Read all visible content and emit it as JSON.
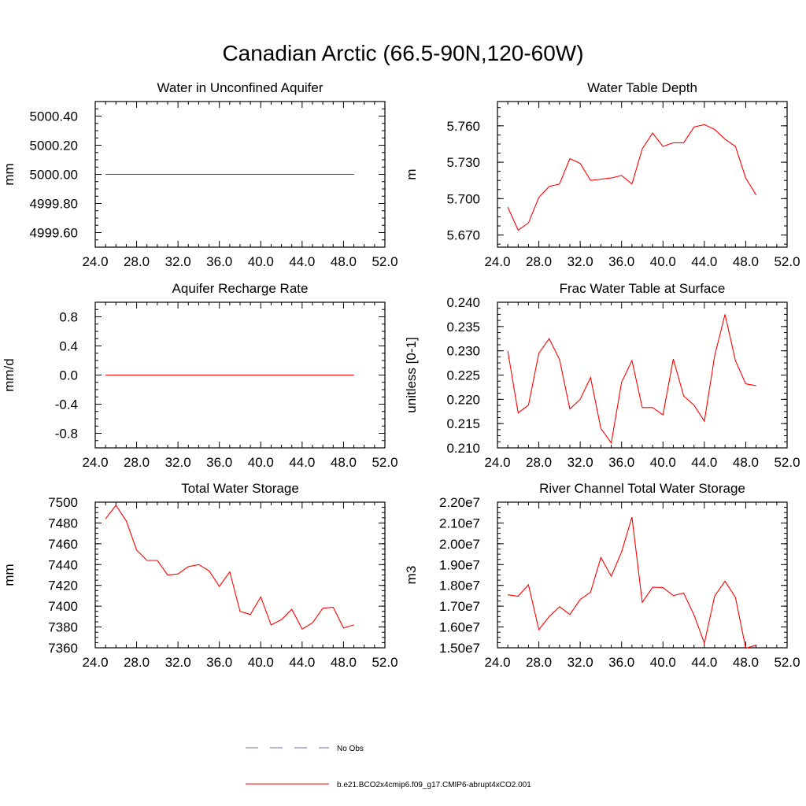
{
  "title": "Canadian Arctic (66.5-90N,120-60W)",
  "colors": {
    "model": "#ff0000",
    "obs": "#6b6bb5",
    "axis": "#000000"
  },
  "legend": {
    "entries": [
      {
        "label": "No Obs",
        "style": "dashed",
        "color": "#6b6bb5"
      },
      {
        "label": "b.e21.BCO2x4cmip6.f09_g17.CMIP6-abrupt4xCO2.001",
        "style": "solid",
        "color": "#ff0000"
      }
    ]
  },
  "chart_data": [
    {
      "type": "line",
      "title": "Water in Unconfined Aquifer",
      "ylabel": "mm",
      "xlim": [
        24,
        52
      ],
      "ylim": [
        4999.5,
        5000.5
      ],
      "xticks": [
        24,
        28,
        32,
        36,
        40,
        44,
        48,
        52
      ],
      "xticklabels": [
        "24.0",
        "28.0",
        "32.0",
        "36.0",
        "40.0",
        "44.0",
        "48.0",
        "52.0"
      ],
      "yticks": [
        4999.6,
        4999.8,
        5000.0,
        5000.2,
        5000.4
      ],
      "yticklabels": [
        "4999.60",
        "4999.80",
        "5000.00",
        "5000.20",
        "5000.40"
      ],
      "x": [
        25,
        26,
        27,
        28,
        29,
        30,
        31,
        32,
        33,
        34,
        35,
        36,
        37,
        38,
        39,
        40,
        41,
        42,
        43,
        44,
        45,
        46,
        47,
        48,
        49
      ],
      "series": [
        {
          "values": [
            5000.0,
            5000.0,
            5000.0,
            5000.0,
            5000.0,
            5000.0,
            5000.0,
            5000.0,
            5000.0,
            5000.0,
            5000.0,
            5000.0,
            5000.0,
            5000.0,
            5000.0,
            5000.0,
            5000.0,
            5000.0,
            5000.0,
            5000.0,
            5000.0,
            5000.0,
            5000.0,
            5000.0,
            5000.0
          ]
        }
      ]
    },
    {
      "type": "line",
      "title": "Water Table Depth",
      "ylabel": "m",
      "xlim": [
        24,
        52
      ],
      "ylim": [
        5.66,
        5.78
      ],
      "xticks": [
        24,
        28,
        32,
        36,
        40,
        44,
        48,
        52
      ],
      "xticklabels": [
        "24.0",
        "28.0",
        "32.0",
        "36.0",
        "40.0",
        "44.0",
        "48.0",
        "52.0"
      ],
      "yticks": [
        5.67,
        5.7,
        5.73,
        5.76
      ],
      "yticklabels": [
        "5.670",
        "5.700",
        "5.730",
        "5.760"
      ],
      "x": [
        25,
        26,
        27,
        28,
        29,
        30,
        31,
        32,
        33,
        34,
        35,
        36,
        37,
        38,
        39,
        40,
        41,
        42,
        43,
        44,
        45,
        46,
        47,
        48,
        49
      ],
      "series": [
        {
          "values": [
            5.693,
            5.674,
            5.68,
            5.701,
            5.71,
            5.712,
            5.733,
            5.729,
            5.715,
            5.716,
            5.717,
            5.719,
            5.712,
            5.741,
            5.754,
            5.743,
            5.746,
            5.746,
            5.759,
            5.761,
            5.757,
            5.749,
            5.743,
            5.717,
            5.703
          ]
        }
      ]
    },
    {
      "type": "line",
      "title": "Aquifer Recharge Rate",
      "ylabel": "mm/d",
      "xlim": [
        24,
        52
      ],
      "ylim": [
        -1.0,
        1.0
      ],
      "xticks": [
        24,
        28,
        32,
        36,
        40,
        44,
        48,
        52
      ],
      "xticklabels": [
        "24.0",
        "28.0",
        "32.0",
        "36.0",
        "40.0",
        "44.0",
        "48.0",
        "52.0"
      ],
      "yticks": [
        -0.8,
        -0.4,
        0.0,
        0.4,
        0.8
      ],
      "yticklabels": [
        "-0.8",
        "-0.4",
        "0.0",
        "0.4",
        "0.8"
      ],
      "x": [
        25,
        26,
        27,
        28,
        29,
        30,
        31,
        32,
        33,
        34,
        35,
        36,
        37,
        38,
        39,
        40,
        41,
        42,
        43,
        44,
        45,
        46,
        47,
        48,
        49
      ],
      "series": [
        {
          "values": [
            0,
            0,
            0,
            0,
            0,
            0,
            0,
            0,
            0,
            0,
            0,
            0,
            0,
            0,
            0,
            0,
            0,
            0,
            0,
            0,
            0,
            0,
            0,
            0,
            0
          ]
        }
      ]
    },
    {
      "type": "line",
      "title": "Frac Water Table at Surface",
      "ylabel": "unitless [0-1]",
      "xlim": [
        24,
        52
      ],
      "ylim": [
        0.21,
        0.24
      ],
      "xticks": [
        24,
        28,
        32,
        36,
        40,
        44,
        48,
        52
      ],
      "xticklabels": [
        "24.0",
        "28.0",
        "32.0",
        "36.0",
        "40.0",
        "44.0",
        "48.0",
        "52.0"
      ],
      "yticks": [
        0.21,
        0.215,
        0.22,
        0.225,
        0.23,
        0.235,
        0.24
      ],
      "yticklabels": [
        "0.210",
        "0.215",
        "0.220",
        "0.225",
        "0.230",
        "0.235",
        "0.240"
      ],
      "x": [
        25,
        26,
        27,
        28,
        29,
        30,
        31,
        32,
        33,
        34,
        35,
        36,
        37,
        38,
        39,
        40,
        41,
        42,
        43,
        44,
        45,
        46,
        47,
        48,
        49
      ],
      "series": [
        {
          "values": [
            0.23,
            0.2172,
            0.2188,
            0.2295,
            0.2325,
            0.2282,
            0.218,
            0.22,
            0.2245,
            0.214,
            0.211,
            0.2235,
            0.228,
            0.2183,
            0.2183,
            0.2168,
            0.2283,
            0.2207,
            0.2188,
            0.2155,
            0.229,
            0.2375,
            0.228,
            0.2232,
            0.2228
          ]
        }
      ]
    },
    {
      "type": "line",
      "title": "Total Water Storage",
      "ylabel": "mm",
      "xlim": [
        24,
        52
      ],
      "ylim": [
        7360,
        7500
      ],
      "xticks": [
        24,
        28,
        32,
        36,
        40,
        44,
        48,
        52
      ],
      "xticklabels": [
        "24.0",
        "28.0",
        "32.0",
        "36.0",
        "40.0",
        "44.0",
        "48.0",
        "52.0"
      ],
      "yticks": [
        7360,
        7380,
        7400,
        7420,
        7440,
        7460,
        7480,
        7500
      ],
      "yticklabels": [
        "7360",
        "7380",
        "7400",
        "7420",
        "7440",
        "7460",
        "7480",
        "7500"
      ],
      "x": [
        25,
        26,
        27,
        28,
        29,
        30,
        31,
        32,
        33,
        34,
        35,
        36,
        37,
        38,
        39,
        40,
        41,
        42,
        43,
        44,
        45,
        46,
        47,
        48,
        49
      ],
      "series": [
        {
          "values": [
            7484,
            7497,
            7482,
            7454,
            7444,
            7444,
            7430,
            7431,
            7438,
            7440,
            7434,
            7419,
            7433,
            7395,
            7392,
            7409,
            7382,
            7387,
            7397,
            7378,
            7384,
            7398,
            7399,
            7379,
            7382
          ]
        }
      ]
    },
    {
      "type": "line",
      "title": "River Channel Total Water Storage",
      "ylabel": "m3",
      "xlim": [
        24,
        52
      ],
      "ylim": [
        15000000,
        22000000
      ],
      "xticks": [
        24,
        28,
        32,
        36,
        40,
        44,
        48,
        52
      ],
      "xticklabels": [
        "24.0",
        "28.0",
        "32.0",
        "36.0",
        "40.0",
        "44.0",
        "48.0",
        "52.0"
      ],
      "yticks": [
        15000000,
        16000000,
        17000000,
        18000000,
        19000000,
        20000000,
        21000000,
        22000000
      ],
      "yticklabels": [
        "1.50e7",
        "1.60e7",
        "1.70e7",
        "1.80e7",
        "1.90e7",
        "2.00e7",
        "2.10e7",
        "2.20e7"
      ],
      "x": [
        25,
        26,
        27,
        28,
        29,
        30,
        31,
        32,
        33,
        34,
        35,
        36,
        37,
        38,
        39,
        40,
        41,
        42,
        43,
        44,
        45,
        46,
        47,
        48,
        49
      ],
      "series": [
        {
          "values": [
            17550000,
            17480000,
            18030000,
            15870000,
            16500000,
            16970000,
            16600000,
            17320000,
            17670000,
            19340000,
            18440000,
            19610000,
            21280000,
            17180000,
            17910000,
            17900000,
            17510000,
            17630000,
            16580000,
            15220000,
            17490000,
            18200000,
            17430000,
            14980000,
            15120000
          ]
        }
      ]
    }
  ]
}
